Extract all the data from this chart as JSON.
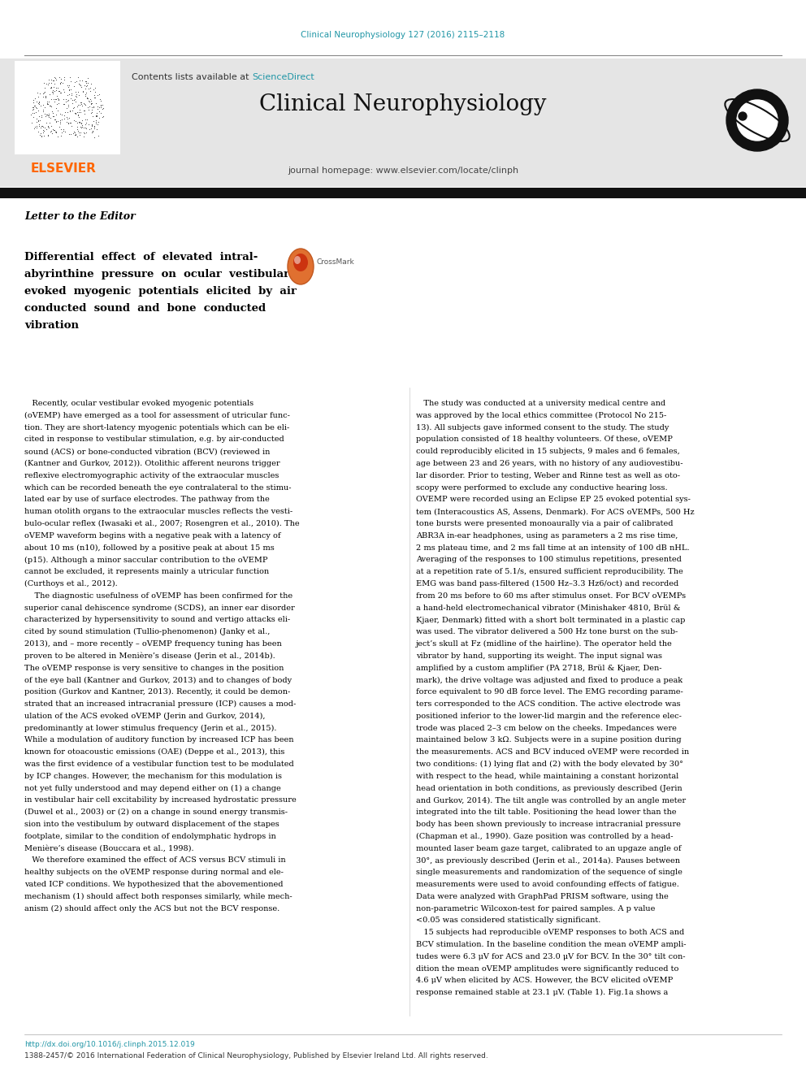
{
  "page_width": 9.92,
  "page_height": 13.23,
  "dpi": 100,
  "background_color": "#ffffff",
  "journal_ref_color": "#2196A6",
  "journal_ref_text": "Clinical Neurophysiology 127 (2016) 2115–2118",
  "sciencedirect_link": "ScienceDirect",
  "journal_name": "Clinical Neurophysiology",
  "journal_homepage": "journal homepage: www.elsevier.com/locate/clinph",
  "section_title": "Letter to the Editor",
  "header_bg": "#e5e5e5",
  "elsevier_color": "#FF6600",
  "link_color": "#2196A6",
  "body_text_color": "#000000",
  "doi_text": "http://dx.doi.org/10.1016/j.clinph.2015.12.019",
  "copyright_text": "1388-2457/© 2016 International Federation of Clinical Neurophysiology, Published by Elsevier Ireland Ltd. All rights reserved.",
  "left_body_lines": [
    "   Recently, ocular vestibular evoked myogenic potentials",
    "(oVEMP) have emerged as a tool for assessment of utricular func-",
    "tion. They are short-latency myogenic potentials which can be eli-",
    "cited in response to vestibular stimulation, e.g. by air-conducted",
    "sound (ACS) or bone-conducted vibration (BCV) (reviewed in",
    "(Kantner and Gurkov, 2012)). Otolithic afferent neurons trigger",
    "reflexive electromyographic activity of the extraocular muscles",
    "which can be recorded beneath the eye contralateral to the stimu-",
    "lated ear by use of surface electrodes. The pathway from the",
    "human otolith organs to the extraocular muscles reflects the vesti-",
    "bulo-ocular reflex (Iwasaki et al., 2007; Rosengren et al., 2010). The",
    "oVEMP waveform begins with a negative peak with a latency of",
    "about 10 ms (n10), followed by a positive peak at about 15 ms",
    "(p15). Although a minor saccular contribution to the oVEMP",
    "cannot be excluded, it represents mainly a utricular function",
    "(Curthoys et al., 2012).",
    "    The diagnostic usefulness of oVEMP has been confirmed for the",
    "superior canal dehiscence syndrome (SCDS), an inner ear disorder",
    "characterized by hypersensitivity to sound and vertigo attacks eli-",
    "cited by sound stimulation (Tullio-phenomenon) (Janky et al.,",
    "2013), and – more recently – oVEMP frequency tuning has been",
    "proven to be altered in Menière’s disease (Jerin et al., 2014b).",
    "The oVEMP response is very sensitive to changes in the position",
    "of the eye ball (Kantner and Gurkov, 2013) and to changes of body",
    "position (Gurkov and Kantner, 2013). Recently, it could be demon-",
    "strated that an increased intracranial pressure (ICP) causes a mod-",
    "ulation of the ACS evoked oVEMP (Jerin and Gurkov, 2014),",
    "predominantly at lower stimulus frequency (Jerin et al., 2015).",
    "While a modulation of auditory function by increased ICP has been",
    "known for otoacoustic emissions (OAE) (Deppe et al., 2013), this",
    "was the first evidence of a vestibular function test to be modulated",
    "by ICP changes. However, the mechanism for this modulation is",
    "not yet fully understood and may depend either on (1) a change",
    "in vestibular hair cell excitability by increased hydrostatic pressure",
    "(Duwel et al., 2003) or (2) on a change in sound energy transmis-",
    "sion into the vestibulum by outward displacement of the stapes",
    "footplate, similar to the condition of endolymphatic hydrops in",
    "Menière’s disease (Bouccara et al., 1998).",
    "   We therefore examined the effect of ACS versus BCV stimuli in",
    "healthy subjects on the oVEMP response during normal and ele-",
    "vated ICP conditions. We hypothesized that the abovementioned",
    "mechanism (1) should affect both responses similarly, while mech-",
    "anism (2) should affect only the ACS but not the BCV response."
  ],
  "right_body_lines": [
    "   The study was conducted at a university medical centre and",
    "was approved by the local ethics committee (Protocol No 215-",
    "13). All subjects gave informed consent to the study. The study",
    "population consisted of 18 healthy volunteers. Of these, oVEMP",
    "could reproducibly elicited in 15 subjects, 9 males and 6 females,",
    "age between 23 and 26 years, with no history of any audiovestibu-",
    "lar disorder. Prior to testing, Weber and Rinne test as well as oto-",
    "scopy were performed to exclude any conductive hearing loss.",
    "OVEMP were recorded using an Eclipse EP 25 evoked potential sys-",
    "tem (Interacoustics AS, Assens, Denmark). For ACS oVEMPs, 500 Hz",
    "tone bursts were presented monoaurally via a pair of calibrated",
    "ABR3A in-ear headphones, using as parameters a 2 ms rise time,",
    "2 ms plateau time, and 2 ms fall time at an intensity of 100 dB nHL.",
    "Averaging of the responses to 100 stimulus repetitions, presented",
    "at a repetition rate of 5.1/s, ensured sufficient reproducibility. The",
    "EMG was band pass-filtered (1500 Hz–3.3 Hz6/oct) and recorded",
    "from 20 ms before to 60 ms after stimulus onset. For BCV oVEMPs",
    "a hand-held electromechanical vibrator (Minishaker 4810, Brül &",
    "Kjaer, Denmark) fitted with a short bolt terminated in a plastic cap",
    "was used. The vibrator delivered a 500 Hz tone burst on the sub-",
    "ject’s skull at Fz (midline of the hairline). The operator held the",
    "vibrator by hand, supporting its weight. The input signal was",
    "amplified by a custom amplifier (PA 2718, Brül & Kjaer, Den-",
    "mark), the drive voltage was adjusted and fixed to produce a peak",
    "force equivalent to 90 dB force level. The EMG recording parame-",
    "ters corresponded to the ACS condition. The active electrode was",
    "positioned inferior to the lower-lid margin and the reference elec-",
    "trode was placed 2–3 cm below on the cheeks. Impedances were",
    "maintained below 3 kΩ. Subjects were in a supine position during",
    "the measurements. ACS and BCV induced oVEMP were recorded in",
    "two conditions: (1) lying flat and (2) with the body elevated by 30°",
    "with respect to the head, while maintaining a constant horizontal",
    "head orientation in both conditions, as previously described (Jerin",
    "and Gurkov, 2014). The tilt angle was controlled by an angle meter",
    "integrated into the tilt table. Positioning the head lower than the",
    "body has been shown previously to increase intracranial pressure",
    "(Chapman et al., 1990). Gaze position was controlled by a head-",
    "mounted laser beam gaze target, calibrated to an upgaze angle of",
    "30°, as previously described (Jerin et al., 2014a). Pauses between",
    "single measurements and randomization of the sequence of single",
    "measurements were used to avoid confounding effects of fatigue.",
    "Data were analyzed with GraphPad PRISM software, using the",
    "non-parametric Wilcoxon-test for paired samples. A p value",
    "<0.05 was considered statistically significant.",
    "   15 subjects had reproducible oVEMP responses to both ACS and",
    "BCV stimulation. In the baseline condition the mean oVEMP ampli-",
    "tudes were 6.3 μV for ACS and 23.0 μV for BCV. In the 30° tilt con-",
    "dition the mean oVEMP amplitudes were significantly reduced to",
    "4.6 μV when elicited by ACS. However, the BCV elicited oVEMP",
    "response remained stable at 23.1 μV. (Table 1). Fig.1a shows a"
  ],
  "title_lines": [
    "Differential  effect  of  elevated  intral-",
    "abyrinthine  pressure  on  ocular  vestibular",
    "evoked  myogenic  potentials  elicited  by  air",
    "conducted  sound  and  bone  conducted",
    "vibration"
  ]
}
